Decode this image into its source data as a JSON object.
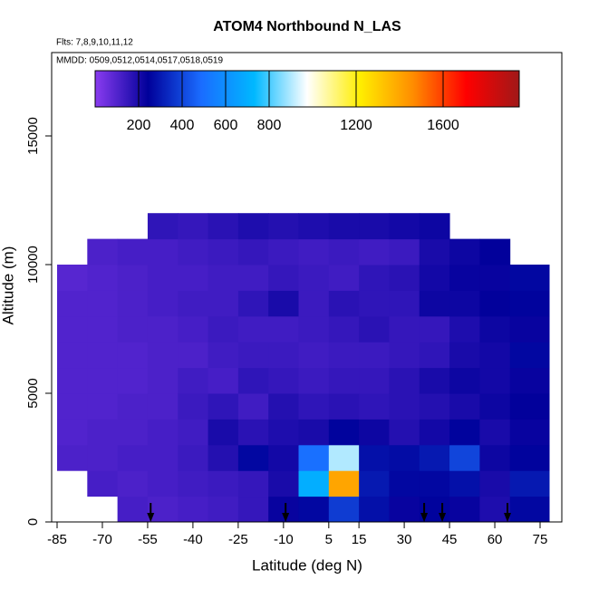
{
  "chart_data": {
    "type": "heatmap",
    "title": "ATOM4 Northbound N_LAS",
    "subtitle": "Flts: 7,8,9,10,11,12",
    "annotation": "MMDD: 0509,0512,0514,0517,0518,0519",
    "x_label": "Latitude (deg N)",
    "y_label": "Altitude (m)",
    "xlim": [
      -86.8,
      82.2
    ],
    "ylim": [
      0,
      18240
    ],
    "xticks": [
      -85,
      -70,
      -55,
      -40,
      -25,
      -10,
      5,
      15,
      30,
      45,
      60,
      75
    ],
    "yticks": [
      0,
      5000,
      10000,
      15000
    ],
    "latitude_bins": [
      -85,
      -75,
      -65,
      -55,
      -45,
      -35,
      -25,
      -15,
      -5,
      5,
      15,
      25,
      35,
      45,
      55,
      65,
      78
    ],
    "altitude_bins": [
      0,
      1000,
      2000,
      3000,
      4000,
      5000,
      6000,
      7000,
      8000,
      9000,
      10000,
      11000,
      12000
    ],
    "values": [
      [
        null,
        null,
        120,
        110,
        120,
        130,
        150,
        230,
        260,
        380,
        280,
        230,
        250,
        230,
        190,
        260
      ],
      [
        null,
        120,
        110,
        120,
        130,
        140,
        150,
        200,
        700,
        1400,
        300,
        260,
        260,
        280,
        200,
        300
      ],
      [
        110,
        110,
        120,
        120,
        140,
        180,
        260,
        210,
        500,
        900,
        280,
        270,
        300,
        400,
        220,
        250
      ],
      [
        100,
        110,
        110,
        120,
        130,
        200,
        170,
        190,
        200,
        250,
        220,
        180,
        210,
        250,
        200,
        230
      ],
      [
        100,
        100,
        110,
        110,
        140,
        160,
        130,
        180,
        160,
        170,
        160,
        170,
        180,
        200,
        220,
        240
      ],
      [
        100,
        100,
        100,
        110,
        130,
        120,
        160,
        150,
        140,
        150,
        150,
        170,
        200,
        220,
        210,
        230
      ],
      [
        100,
        100,
        100,
        110,
        110,
        130,
        140,
        140,
        130,
        140,
        140,
        150,
        160,
        200,
        210,
        260
      ],
      [
        100,
        100,
        110,
        110,
        120,
        140,
        130,
        130,
        140,
        150,
        170,
        150,
        150,
        190,
        220,
        230
      ],
      [
        100,
        100,
        110,
        120,
        130,
        130,
        160,
        200,
        140,
        170,
        160,
        160,
        220,
        220,
        240,
        250
      ],
      [
        90,
        100,
        110,
        120,
        120,
        130,
        130,
        150,
        140,
        130,
        160,
        170,
        210,
        230,
        230,
        260
      ],
      [
        null,
        110,
        120,
        120,
        130,
        140,
        150,
        140,
        130,
        140,
        130,
        140,
        200,
        220,
        240,
        null
      ],
      [
        null,
        null,
        null,
        160,
        150,
        170,
        190,
        180,
        190,
        200,
        200,
        210,
        220,
        null,
        null,
        null
      ]
    ],
    "colorscale": [
      "#8a3cf0",
      "#00009a",
      "#1a6cff",
      "#00b8ff",
      "#ffffff",
      "#ffee00",
      "#ff8c00",
      "#ff0000",
      "#a01818"
    ],
    "colorbar_lim": [
      0,
      1950
    ],
    "colorbar_ticks": [
      200,
      400,
      600,
      800,
      1200,
      1600
    ],
    "arrows_latitude": [
      -54,
      -9.3,
      36.6,
      42.6,
      64.2
    ]
  }
}
